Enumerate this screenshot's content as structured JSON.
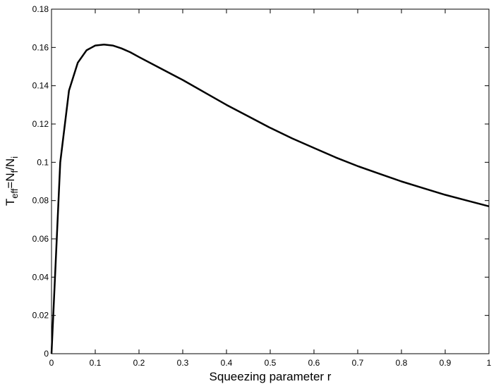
{
  "chart_data": {
    "type": "line",
    "xlabel": "Squeezing parameter r",
    "ylabel_parts": [
      "T",
      "eff",
      "=N",
      "f",
      "/N",
      "i"
    ],
    "x": [
      0,
      0.02,
      0.04,
      0.06,
      0.08,
      0.1,
      0.12,
      0.14,
      0.16,
      0.18,
      0.2,
      0.25,
      0.3,
      0.35,
      0.4,
      0.45,
      0.5,
      0.55,
      0.6,
      0.65,
      0.7,
      0.75,
      0.8,
      0.85,
      0.9,
      0.95,
      1
    ],
    "series": [
      {
        "color": "#000000",
        "values": [
          0,
          0.1,
          0.1375,
          0.152,
          0.1585,
          0.161,
          0.1615,
          0.161,
          0.1595,
          0.1575,
          0.155,
          0.149,
          0.143,
          0.1365,
          0.13,
          0.124,
          0.118,
          0.1125,
          0.1075,
          0.1025,
          0.098,
          0.094,
          0.09,
          0.0865,
          0.083,
          0.08,
          0.077
        ]
      }
    ],
    "xlim": [
      0,
      1
    ],
    "xticks": [
      0,
      0.1,
      0.2,
      0.3,
      0.4,
      0.5,
      0.6,
      0.7,
      0.8,
      0.9,
      1
    ],
    "ylim": [
      0,
      0.18
    ],
    "yticks": [
      0,
      0.02,
      0.04,
      0.06,
      0.08,
      0.1,
      0.12,
      0.14,
      0.16,
      0.18
    ],
    "grid": false
  }
}
